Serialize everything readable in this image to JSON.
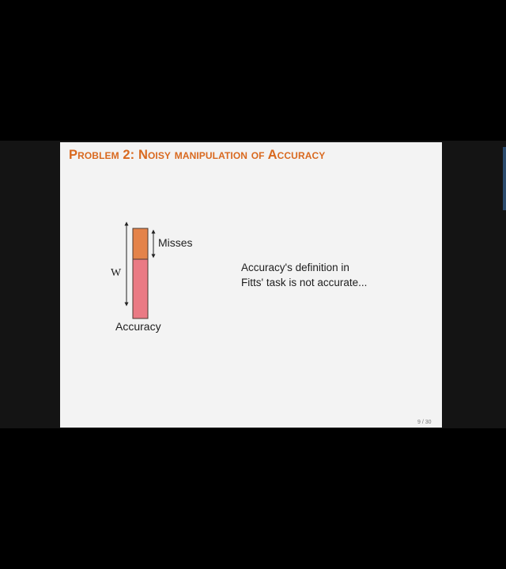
{
  "slide": {
    "title": "Problem 2: Noisy manipulation of Accuracy",
    "title_color": "#d9691f",
    "diagram": {
      "misses_label": "Misses",
      "width_label": "W",
      "accuracy_label": "Accuracy",
      "misses_color": "#e4834a",
      "accuracy_color": "#ea7a84"
    },
    "statement": {
      "line1": "Accuracy's definition in",
      "line2": "Fitts' task is not accurate..."
    },
    "page_number": "9 / 30"
  }
}
